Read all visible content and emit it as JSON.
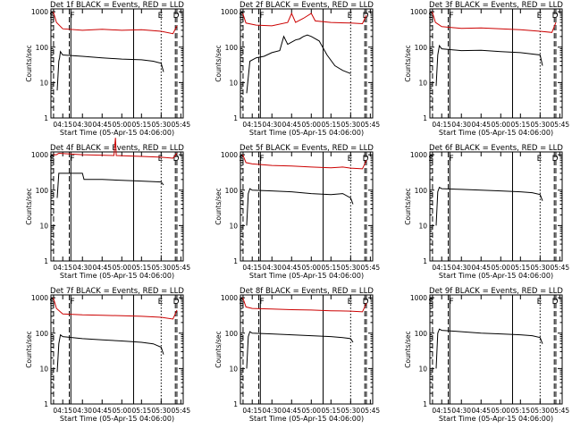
{
  "figure": {
    "description_panels": 9
  },
  "chart_data": [
    {
      "type": "line",
      "title": "Det 1f BLACK = Events, RED = LLD",
      "ylabel": "Counts/sec",
      "xlabel": "Start Time (05-Apr-15 04:06:00)",
      "x_ticks": [
        "04:15",
        "04:30",
        "04:45",
        "05:00",
        "05:15",
        "05:30",
        "05:45"
      ],
      "y_ticks": [
        "1",
        "10",
        "100",
        "1000"
      ],
      "ylim": [
        1,
        1200
      ],
      "y_scale": "log",
      "markers": {
        "S": "04:08",
        "F": "04:20",
        "E": "05:30",
        "D": "05:42"
      },
      "series": [
        {
          "color": "#cc0000",
          "values": [
            [
              4.13,
              1000
            ],
            [
              4.17,
              500
            ],
            [
              4.25,
              330
            ],
            [
              4.5,
              300
            ],
            [
              4.75,
              320
            ],
            [
              5.0,
              300
            ],
            [
              5.25,
              310
            ],
            [
              5.5,
              280
            ],
            [
              5.65,
              240
            ],
            [
              5.7,
              400
            ]
          ]
        },
        {
          "color": "#000000",
          "values": [
            [
              4.18,
              6
            ],
            [
              4.2,
              40
            ],
            [
              4.21,
              50
            ],
            [
              4.22,
              75
            ],
            [
              4.25,
              60
            ],
            [
              4.5,
              55
            ],
            [
              4.75,
              50
            ],
            [
              5.0,
              46
            ],
            [
              5.25,
              44
            ],
            [
              5.4,
              40
            ],
            [
              5.5,
              35
            ],
            [
              5.53,
              20
            ]
          ]
        }
      ]
    },
    {
      "type": "line",
      "title": "Det 2f BLACK = Events, RED = LLD",
      "ylabel": "Counts/sec",
      "xlabel": "Start Time (05-Apr-15 04:06:00)",
      "x_ticks": [
        "04:15",
        "04:30",
        "04:45",
        "05:00",
        "05:15",
        "05:30",
        "05:45"
      ],
      "y_ticks": [
        "1",
        "10",
        "100",
        "1000"
      ],
      "ylim": [
        1,
        1200
      ],
      "y_scale": "log",
      "markers": {
        "S": "04:08",
        "F": "04:20",
        "E": "05:30",
        "D": "05:42"
      },
      "series": [
        {
          "color": "#cc0000",
          "values": [
            [
              4.13,
              900
            ],
            [
              4.17,
              480
            ],
            [
              4.3,
              420
            ],
            [
              4.5,
              400
            ],
            [
              4.7,
              500
            ],
            [
              4.75,
              900
            ],
            [
              4.8,
              500
            ],
            [
              4.9,
              650
            ],
            [
              5.0,
              900
            ],
            [
              5.05,
              550
            ],
            [
              5.25,
              500
            ],
            [
              5.5,
              480
            ],
            [
              5.65,
              460
            ],
            [
              5.7,
              800
            ]
          ]
        },
        {
          "color": "#000000",
          "values": [
            [
              4.18,
              5
            ],
            [
              4.22,
              40
            ],
            [
              4.3,
              50
            ],
            [
              4.4,
              55
            ],
            [
              4.5,
              70
            ],
            [
              4.6,
              80
            ],
            [
              4.65,
              200
            ],
            [
              4.7,
              120
            ],
            [
              4.8,
              160
            ],
            [
              4.85,
              170
            ],
            [
              4.9,
              200
            ],
            [
              4.95,
              220
            ],
            [
              5.0,
              200
            ],
            [
              5.1,
              150
            ],
            [
              5.2,
              60
            ],
            [
              5.3,
              30
            ],
            [
              5.4,
              22
            ],
            [
              5.5,
              18
            ]
          ]
        }
      ]
    },
    {
      "type": "line",
      "title": "Det 3f BLACK = Events, RED = LLD",
      "ylabel": "Counts/sec",
      "xlabel": "Start Time (05-Apr-15 04:06:00)",
      "x_ticks": [
        "04:15",
        "04:30",
        "04:45",
        "05:00",
        "05:15",
        "05:30",
        "05:45"
      ],
      "y_ticks": [
        "1",
        "10",
        "100",
        "1000"
      ],
      "ylim": [
        1,
        1200
      ],
      "y_scale": "log",
      "markers": {
        "S": "04:08",
        "F": "04:20",
        "E": "05:30",
        "D": "05:42"
      },
      "series": [
        {
          "color": "#cc0000",
          "values": [
            [
              4.13,
              1000
            ],
            [
              4.17,
              500
            ],
            [
              4.25,
              380
            ],
            [
              4.5,
              340
            ],
            [
              4.75,
              350
            ],
            [
              5.0,
              330
            ],
            [
              5.25,
              310
            ],
            [
              5.5,
              280
            ],
            [
              5.65,
              260
            ],
            [
              5.7,
              500
            ]
          ]
        },
        {
          "color": "#000000",
          "values": [
            [
              4.18,
              8
            ],
            [
              4.2,
              60
            ],
            [
              4.22,
              110
            ],
            [
              4.25,
              90
            ],
            [
              4.5,
              80
            ],
            [
              4.75,
              82
            ],
            [
              5.0,
              75
            ],
            [
              5.25,
              70
            ],
            [
              5.5,
              60
            ],
            [
              5.53,
              30
            ]
          ]
        }
      ]
    },
    {
      "type": "line",
      "title": "Det 4f BLACK = Events, RED = LLD",
      "ylabel": "Counts/sec",
      "xlabel": "Start Time (05-Apr-15 04:06:00)",
      "x_ticks": [
        "04:15",
        "04:30",
        "04:45",
        "05:00",
        "05:15",
        "05:30",
        "05:45"
      ],
      "y_ticks": [
        "1",
        "10",
        "100",
        "1000"
      ],
      "ylim": [
        1,
        1200
      ],
      "y_scale": "log",
      "markers": {
        "S": "04:08",
        "F": "04:20",
        "E": "05:30",
        "D": "05:42"
      },
      "series": [
        {
          "color": "#cc0000",
          "values": [
            [
              4.13,
              1000
            ],
            [
              4.17,
              1000
            ],
            [
              4.2,
              1100
            ],
            [
              4.5,
              1000
            ],
            [
              4.9,
              950
            ],
            [
              4.92,
              3000
            ],
            [
              4.93,
              950
            ],
            [
              5.25,
              900
            ],
            [
              5.5,
              850
            ],
            [
              5.65,
              800
            ],
            [
              5.7,
              1100
            ]
          ]
        },
        {
          "color": "#000000",
          "values": [
            [
              4.18,
              60
            ],
            [
              4.2,
              300
            ],
            [
              4.25,
              300
            ],
            [
              4.5,
              300
            ],
            [
              4.52,
              200
            ],
            [
              4.75,
              200
            ],
            [
              5.0,
              190
            ],
            [
              5.25,
              180
            ],
            [
              5.5,
              170
            ],
            [
              5.53,
              140
            ]
          ]
        }
      ]
    },
    {
      "type": "line",
      "title": "Det 5f BLACK = Events, RED = LLD",
      "ylabel": "Counts/sec",
      "xlabel": "Start Time (05-Apr-15 04:06:00)",
      "x_ticks": [
        "04:15",
        "04:30",
        "04:45",
        "05:00",
        "05:15",
        "05:30",
        "05:45"
      ],
      "y_ticks": [
        "1",
        "10",
        "100",
        "1000"
      ],
      "ylim": [
        1,
        1200
      ],
      "y_scale": "log",
      "markers": {
        "S": "04:08",
        "F": "04:20",
        "E": "05:30",
        "D": "05:42"
      },
      "series": [
        {
          "color": "#cc0000",
          "values": [
            [
              4.13,
              1000
            ],
            [
              4.17,
              600
            ],
            [
              4.25,
              550
            ],
            [
              4.5,
              500
            ],
            [
              4.75,
              480
            ],
            [
              5.0,
              450
            ],
            [
              5.25,
              430
            ],
            [
              5.4,
              450
            ],
            [
              5.5,
              420
            ],
            [
              5.65,
              400
            ],
            [
              5.7,
              700
            ]
          ]
        },
        {
          "color": "#000000",
          "values": [
            [
              4.18,
              10
            ],
            [
              4.2,
              80
            ],
            [
              4.22,
              110
            ],
            [
              4.25,
              100
            ],
            [
              4.5,
              95
            ],
            [
              4.75,
              90
            ],
            [
              5.0,
              80
            ],
            [
              5.25,
              75
            ],
            [
              5.4,
              80
            ],
            [
              5.5,
              60
            ],
            [
              5.53,
              40
            ]
          ]
        }
      ]
    },
    {
      "type": "line",
      "title": "Det 6f BLACK = Events, RED = LLD",
      "ylabel": "Counts/sec",
      "xlabel": "Start Time (05-Apr-15 04:06:00)",
      "x_ticks": [
        "04:15",
        "04:30",
        "04:45",
        "05:00",
        "05:15",
        "05:30",
        "05:45"
      ],
      "y_ticks": [
        "1",
        "10",
        "100",
        "1000"
      ],
      "ylim": [
        1,
        1200
      ],
      "y_scale": "log",
      "markers": {
        "S": "04:08",
        "F": "04:20",
        "E": "05:30",
        "D": "05:42"
      },
      "series": [
        {
          "color": "#000000",
          "values": [
            [
              4.18,
              10
            ],
            [
              4.2,
              90
            ],
            [
              4.22,
              120
            ],
            [
              4.25,
              110
            ],
            [
              4.5,
              105
            ],
            [
              4.75,
              100
            ],
            [
              5.0,
              95
            ],
            [
              5.25,
              90
            ],
            [
              5.4,
              85
            ],
            [
              5.5,
              75
            ],
            [
              5.53,
              50
            ]
          ]
        }
      ]
    },
    {
      "type": "line",
      "title": "Det 7f BLACK = Events, RED = LLD",
      "ylabel": "Counts/sec",
      "xlabel": "Start Time (05-Apr-15 04:06:00)",
      "x_ticks": [
        "04:15",
        "04:30",
        "04:45",
        "05:00",
        "05:15",
        "05:30",
        "05:45"
      ],
      "y_ticks": [
        "1",
        "10",
        "100",
        "1000"
      ],
      "ylim": [
        1,
        1200
      ],
      "y_scale": "log",
      "markers": {
        "S": "04:08",
        "F": "04:20",
        "E": "05:30",
        "D": "05:42"
      },
      "series": [
        {
          "color": "#cc0000",
          "values": [
            [
              4.13,
              1000
            ],
            [
              4.17,
              500
            ],
            [
              4.25,
              350
            ],
            [
              4.5,
              330
            ],
            [
              4.75,
              320
            ],
            [
              5.0,
              310
            ],
            [
              5.25,
              300
            ],
            [
              5.5,
              280
            ],
            [
              5.65,
              250
            ],
            [
              5.7,
              450
            ]
          ]
        },
        {
          "color": "#000000",
          "values": [
            [
              4.18,
              8
            ],
            [
              4.2,
              50
            ],
            [
              4.22,
              90
            ],
            [
              4.25,
              80
            ],
            [
              4.5,
              70
            ],
            [
              4.75,
              65
            ],
            [
              5.0,
              60
            ],
            [
              5.25,
              55
            ],
            [
              5.4,
              50
            ],
            [
              5.5,
              40
            ],
            [
              5.53,
              25
            ]
          ]
        }
      ]
    },
    {
      "type": "line",
      "title": "Det 8f BLACK = Events, RED = LLD",
      "ylabel": "Counts/sec",
      "xlabel": "Start Time (05-Apr-15 04:06:00)",
      "x_ticks": [
        "04:15",
        "04:30",
        "04:45",
        "05:00",
        "05:15",
        "05:30",
        "05:45"
      ],
      "y_ticks": [
        "1",
        "10",
        "100",
        "1000"
      ],
      "ylim": [
        1,
        1200
      ],
      "y_scale": "log",
      "markers": {
        "S": "04:08",
        "F": "04:20",
        "E": "05:30",
        "D": "05:42"
      },
      "series": [
        {
          "color": "#cc0000",
          "values": [
            [
              4.13,
              1000
            ],
            [
              4.17,
              550
            ],
            [
              4.25,
              500
            ],
            [
              4.5,
              480
            ],
            [
              4.75,
              460
            ],
            [
              5.0,
              450
            ],
            [
              5.25,
              430
            ],
            [
              5.5,
              420
            ],
            [
              5.65,
              400
            ],
            [
              5.7,
              700
            ]
          ]
        },
        {
          "color": "#000000",
          "values": [
            [
              4.18,
              10
            ],
            [
              4.2,
              80
            ],
            [
              4.22,
              110
            ],
            [
              4.25,
              100
            ],
            [
              4.5,
              95
            ],
            [
              4.75,
              90
            ],
            [
              5.0,
              85
            ],
            [
              5.25,
              80
            ],
            [
              5.4,
              75
            ],
            [
              5.5,
              70
            ],
            [
              5.53,
              55
            ]
          ]
        }
      ]
    },
    {
      "type": "line",
      "title": "Det 9f BLACK = Events, RED = LLD",
      "ylabel": "Counts/sec",
      "xlabel": "Start Time (05-Apr-15 04:06:00)",
      "x_ticks": [
        "04:15",
        "04:30",
        "04:45",
        "05:00",
        "05:15",
        "05:30",
        "05:45"
      ],
      "y_ticks": [
        "1",
        "10",
        "100",
        "1000"
      ],
      "ylim": [
        1,
        1200
      ],
      "y_scale": "log",
      "markers": {
        "S": "04:08",
        "F": "04:20",
        "E": "05:30",
        "D": "05:42"
      },
      "series": [
        {
          "color": "#000000",
          "values": [
            [
              4.18,
              10
            ],
            [
              4.2,
              100
            ],
            [
              4.22,
              130
            ],
            [
              4.25,
              120
            ],
            [
              4.5,
              110
            ],
            [
              4.75,
              100
            ],
            [
              5.0,
              95
            ],
            [
              5.25,
              90
            ],
            [
              5.4,
              85
            ],
            [
              5.5,
              75
            ],
            [
              5.53,
              50
            ]
          ]
        }
      ]
    }
  ]
}
